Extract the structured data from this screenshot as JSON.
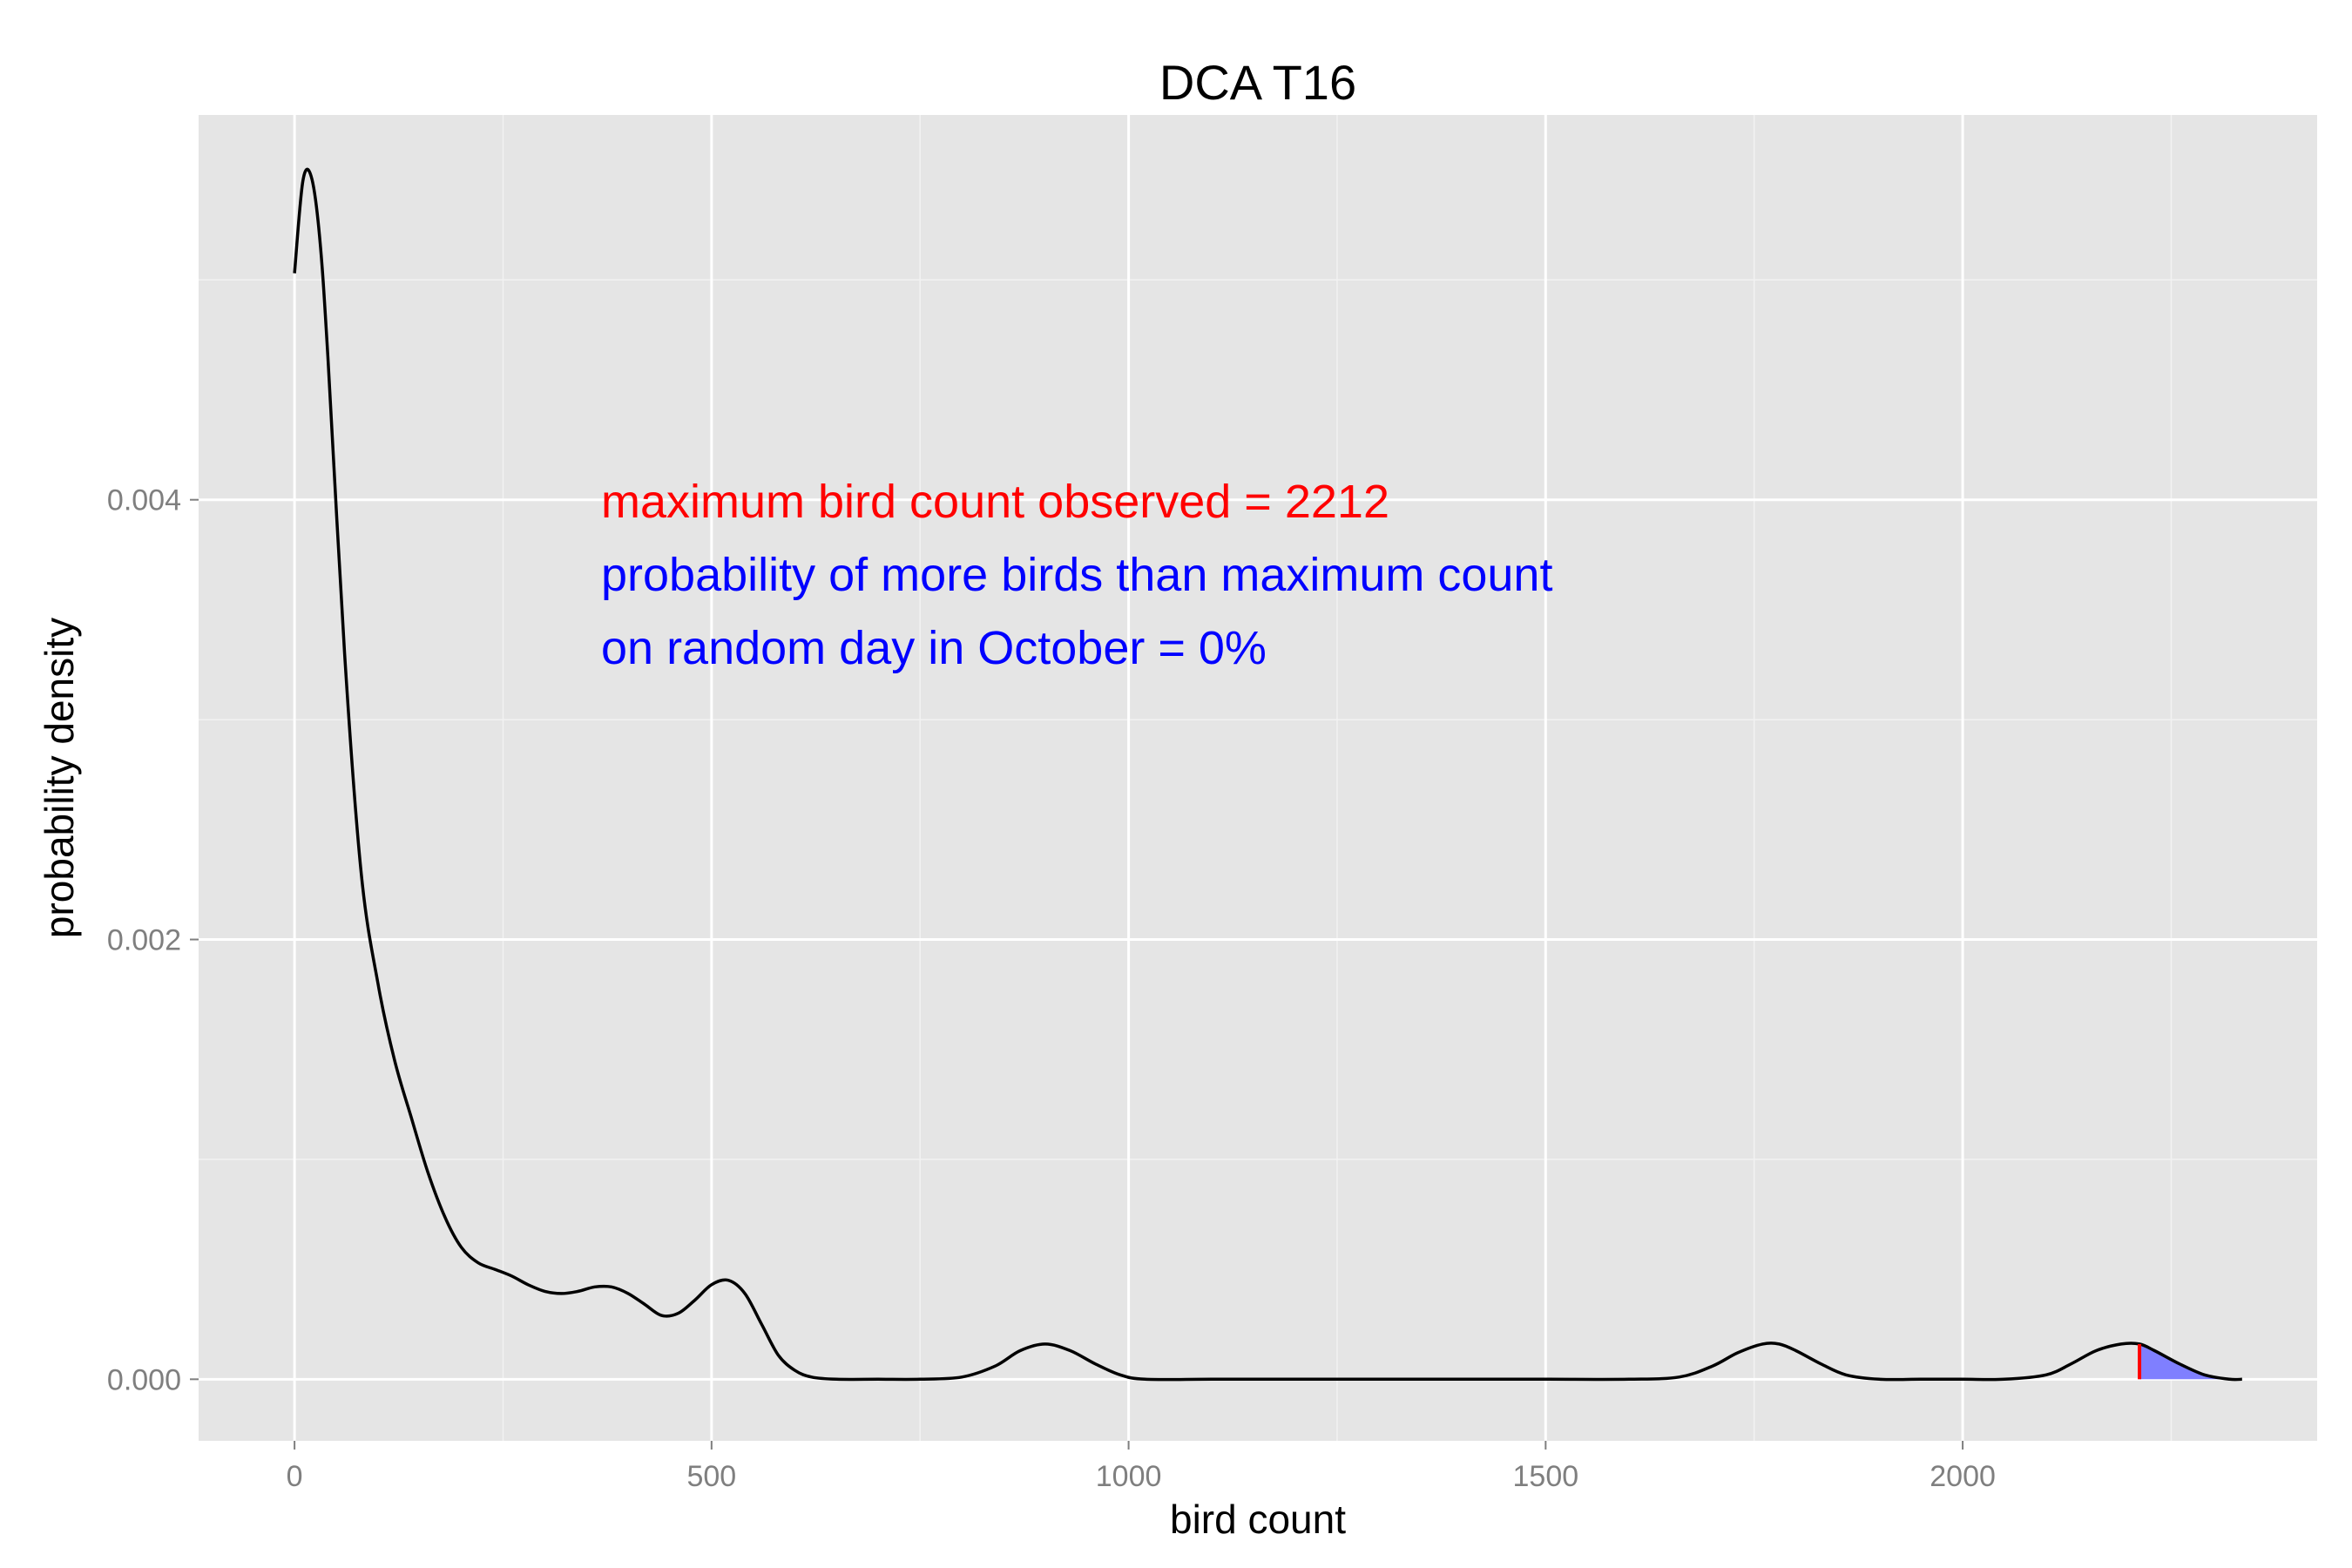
{
  "chart_data": {
    "type": "area",
    "title": "DCA T16",
    "xlabel": "bird count",
    "ylabel": "probability density",
    "xlim": [
      -115,
      2425
    ],
    "ylim": [
      -0.00028,
      0.00575
    ],
    "x_ticks": [
      0,
      500,
      1000,
      1500,
      2000
    ],
    "x_tick_labels": [
      "0",
      "500",
      "1000",
      "1500",
      "2000"
    ],
    "y_ticks": [
      0.0,
      0.002,
      0.004
    ],
    "y_tick_labels": [
      "0.000",
      "0.002",
      "0.004"
    ],
    "grid": true,
    "legend": "none",
    "background_color": "#e5e5e5",
    "grid_color": "#ffffff",
    "line_color": "#000000",
    "observed_max_color": "#ff0000",
    "tail_fill_color": "#7f7fff",
    "observed_max": 2212,
    "series": [
      {
        "x": [
          0,
          10,
          20,
          30,
          40,
          60,
          80,
          100,
          120,
          140,
          160,
          180,
          200,
          220,
          240,
          260,
          280,
          300,
          320,
          340,
          360,
          380,
          400,
          420,
          440,
          460,
          480,
          500,
          520,
          540,
          560,
          580,
          600,
          620,
          650,
          700,
          750,
          800,
          840,
          870,
          900,
          930,
          960,
          990,
          1020,
          1100,
          1200,
          1300,
          1400,
          1500,
          1600,
          1660,
          1700,
          1730,
          1760,
          1780,
          1800,
          1830,
          1860,
          1900,
          1950,
          2000,
          2050,
          2100,
          2130,
          2160,
          2190,
          2212,
          2230,
          2260,
          2290,
          2320,
          2335
        ],
        "y": [
          0.00503,
          0.00545,
          0.00547,
          0.0052,
          0.00465,
          0.0033,
          0.0023,
          0.0018,
          0.00145,
          0.00119,
          0.00094,
          0.00074,
          0.0006,
          0.00053,
          0.0005,
          0.00047,
          0.00043,
          0.0004,
          0.00039,
          0.0004,
          0.00042,
          0.00042,
          0.00039,
          0.00034,
          0.00029,
          0.0003,
          0.00036,
          0.00043,
          0.00045,
          0.00039,
          0.00025,
          0.00011,
          4e-05,
          1e-05,
          0.0,
          0.0,
          0.0,
          1e-05,
          6e-05,
          0.00013,
          0.00016,
          0.00013,
          7e-05,
          2e-05,
          0.0,
          0.0,
          0.0,
          0.0,
          0.0,
          0.0,
          0.0,
          1e-05,
          6e-05,
          0.00012,
          0.00016,
          0.00016,
          0.00013,
          7e-05,
          2e-05,
          0.0,
          0.0,
          0.0,
          0.0,
          2e-05,
          7e-05,
          0.00013,
          0.00016,
          0.00016,
          0.00013,
          7e-05,
          2e-05,
          0.0,
          0.0
        ]
      }
    ],
    "annotations": [
      {
        "text": "maximum bird count observed = 2212",
        "color": "#ff0000"
      },
      {
        "text": "probability of more birds than maximum count",
        "color": "#0000ff"
      },
      {
        "text": "on random day in October = 0%",
        "color": "#0000ff"
      }
    ]
  }
}
